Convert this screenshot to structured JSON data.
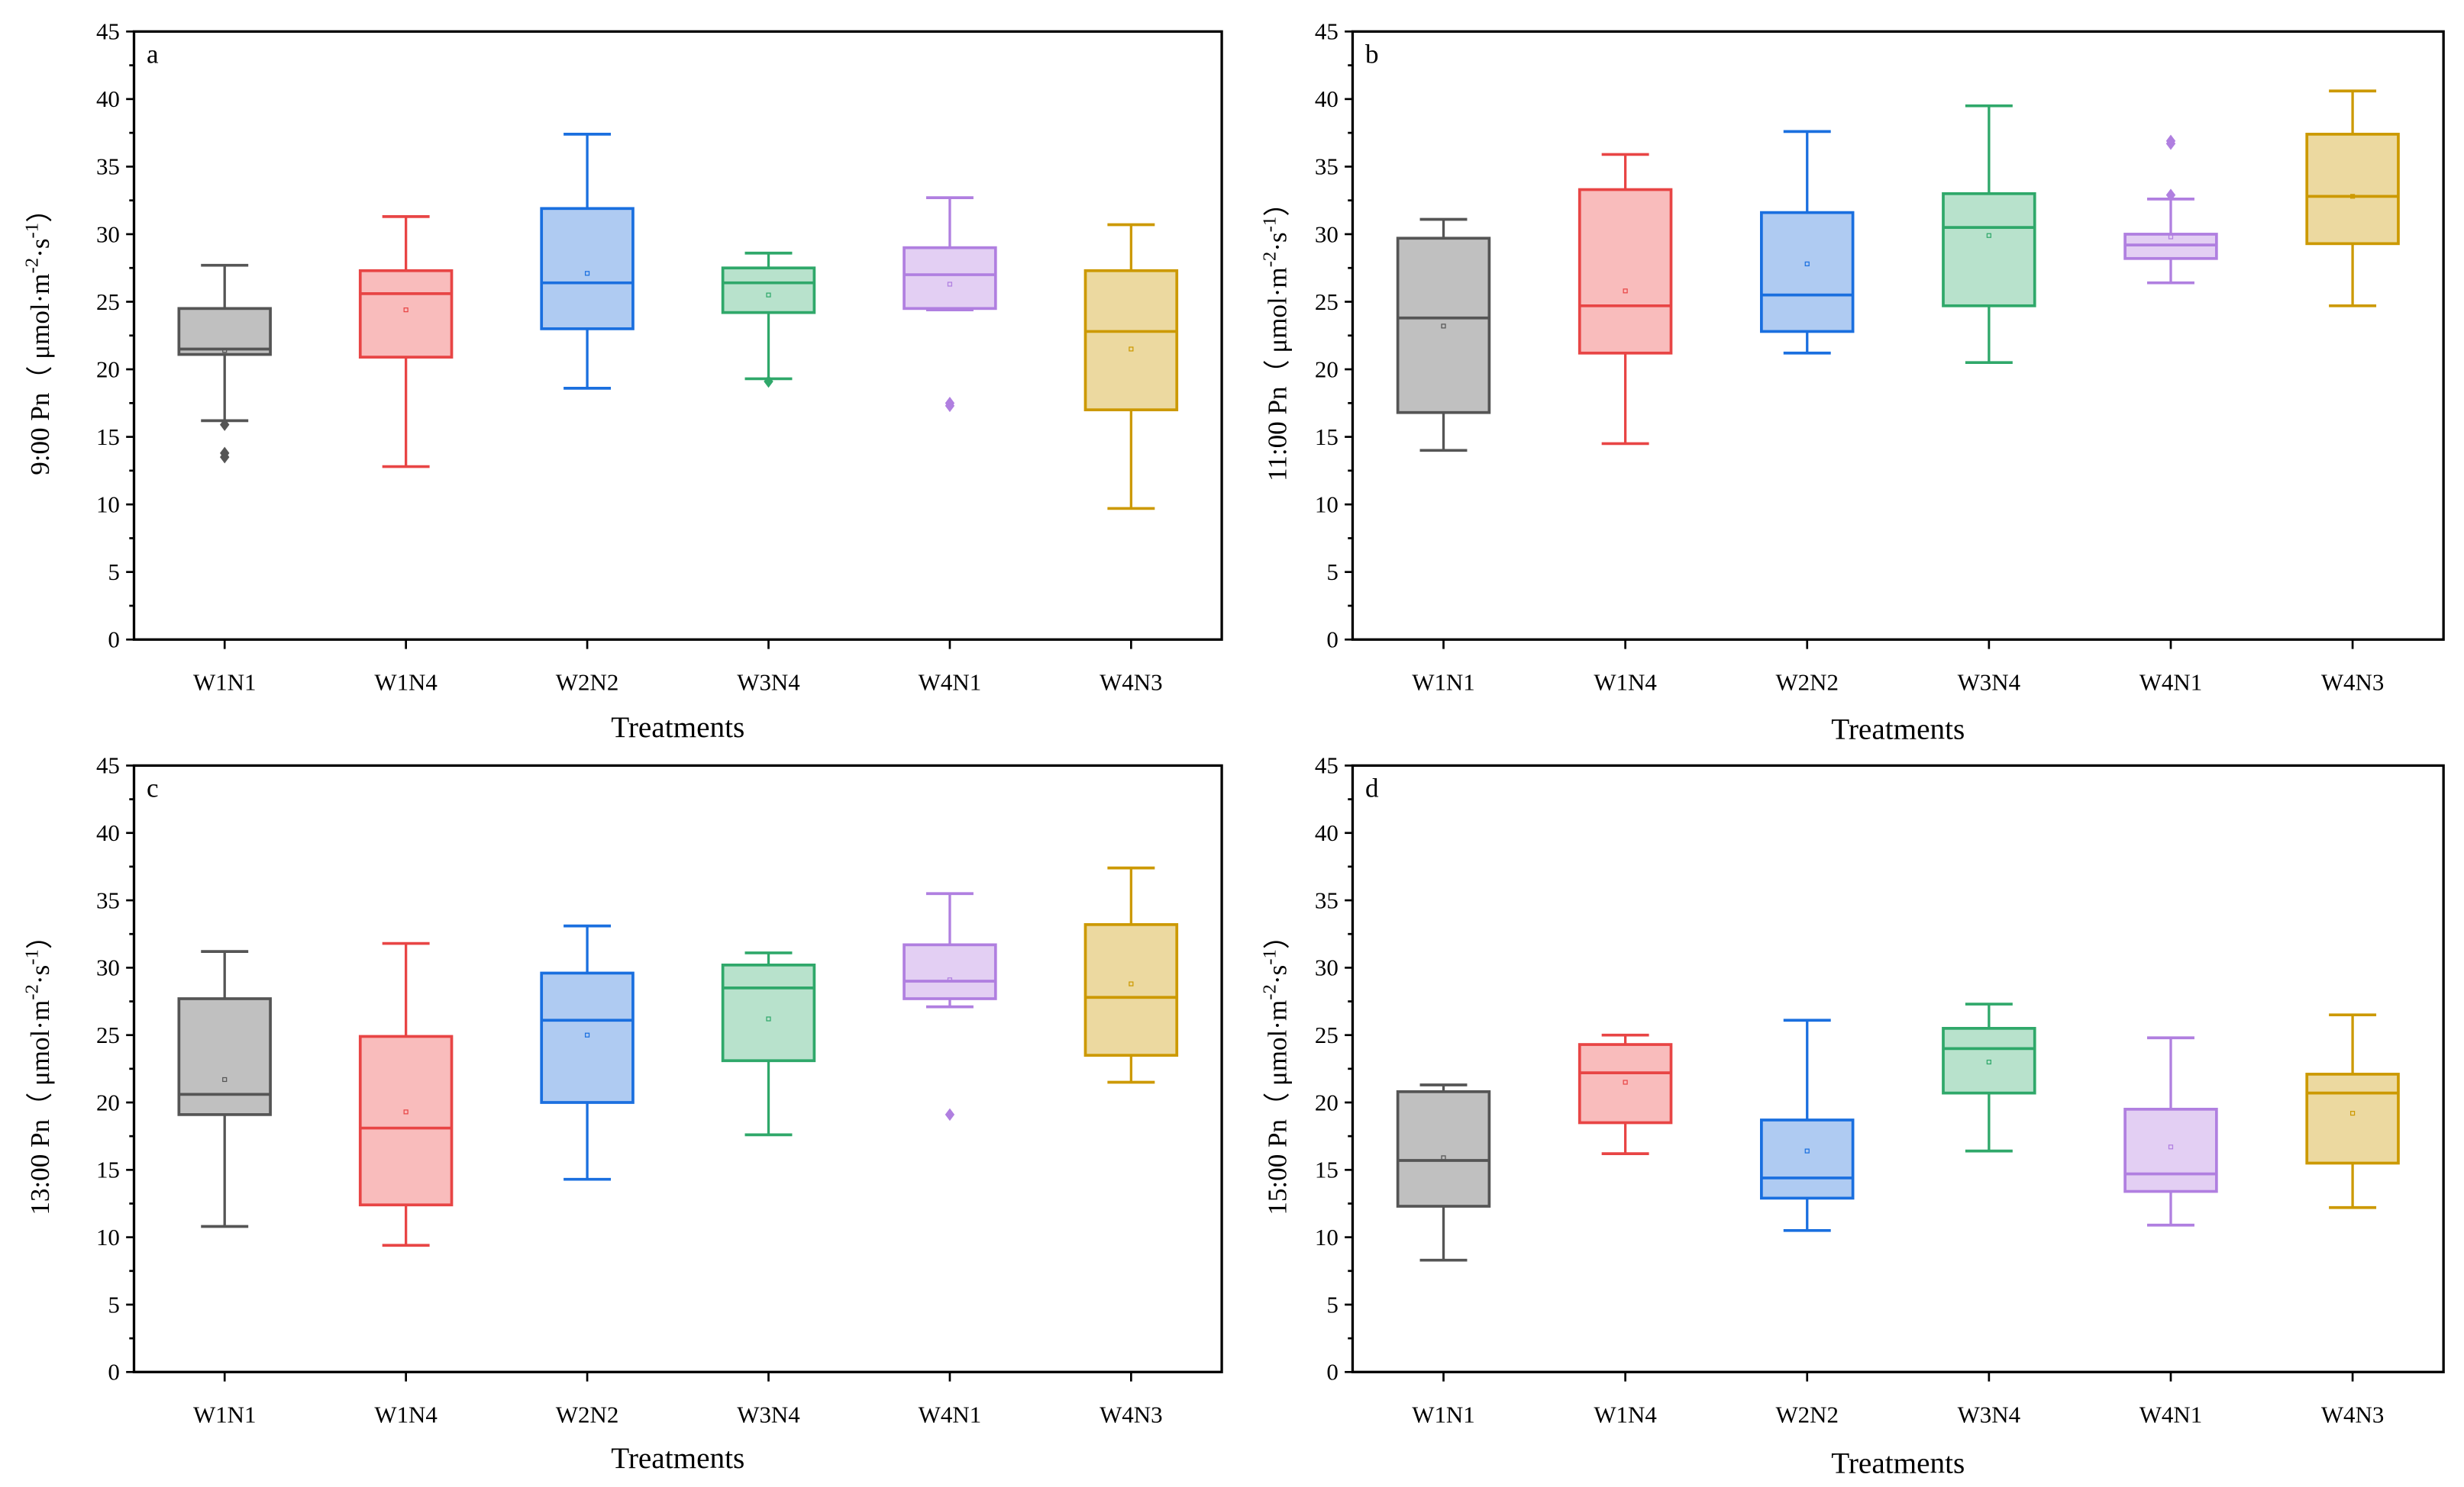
{
  "chart_data": [
    {
      "type": "box",
      "panel_label": "a",
      "ylabel_parts": [
        "9:00 Pn（ μmol·m",
        "-2",
        "·s",
        "-1",
        "）"
      ],
      "xlabel": "Treatments",
      "ylim": [
        0,
        45
      ],
      "yticks": [
        0,
        5,
        10,
        15,
        20,
        25,
        30,
        35,
        40,
        45
      ],
      "categories": [
        "W1N1",
        "W1N4",
        "W2N2",
        "W3N4",
        "W4N1",
        "W4N3"
      ],
      "series": [
        {
          "min": 16.2,
          "q1": 21.1,
          "median": 21.5,
          "q3": 24.5,
          "max": 27.7,
          "mean": 21.4,
          "outliers": [
            15.9,
            13.8,
            13.5
          ]
        },
        {
          "min": 12.8,
          "q1": 20.9,
          "median": 25.6,
          "q3": 27.3,
          "max": 31.3,
          "mean": 24.4,
          "outliers": []
        },
        {
          "min": 18.6,
          "q1": 23.0,
          "median": 26.4,
          "q3": 31.9,
          "max": 37.4,
          "mean": 27.1,
          "outliers": []
        },
        {
          "min": 19.3,
          "q1": 24.2,
          "median": 26.4,
          "q3": 27.5,
          "max": 28.6,
          "mean": 25.5,
          "outliers": [
            19.1
          ]
        },
        {
          "min": 24.4,
          "q1": 24.5,
          "median": 27.0,
          "q3": 29.0,
          "max": 32.7,
          "mean": 26.3,
          "outliers": [
            17.5,
            17.3
          ]
        },
        {
          "min": 9.7,
          "q1": 17.0,
          "median": 22.8,
          "q3": 27.3,
          "max": 30.7,
          "mean": 21.5,
          "outliers": []
        }
      ]
    },
    {
      "type": "box",
      "panel_label": "b",
      "ylabel_parts": [
        "11:00 Pn（ μmol·m",
        "-2",
        "·s",
        "-1",
        "）"
      ],
      "xlabel": "Treatments",
      "ylim": [
        0,
        45
      ],
      "yticks": [
        0,
        5,
        10,
        15,
        20,
        25,
        30,
        35,
        40,
        45
      ],
      "categories": [
        "W1N1",
        "W1N4",
        "W2N2",
        "W3N4",
        "W4N1",
        "W4N3"
      ],
      "series": [
        {
          "min": 14.0,
          "q1": 16.8,
          "median": 23.8,
          "q3": 29.7,
          "max": 31.1,
          "mean": 23.2,
          "outliers": []
        },
        {
          "min": 14.5,
          "q1": 21.2,
          "median": 24.7,
          "q3": 33.3,
          "max": 35.9,
          "mean": 25.8,
          "outliers": []
        },
        {
          "min": 21.2,
          "q1": 22.8,
          "median": 25.5,
          "q3": 31.6,
          "max": 37.6,
          "mean": 27.8,
          "outliers": []
        },
        {
          "min": 20.5,
          "q1": 24.7,
          "median": 30.5,
          "q3": 33.0,
          "max": 39.5,
          "mean": 29.9,
          "outliers": []
        },
        {
          "min": 26.4,
          "q1": 28.2,
          "median": 29.2,
          "q3": 30.0,
          "max": 32.6,
          "mean": 29.8,
          "outliers": [
            36.9,
            36.7,
            32.9
          ]
        },
        {
          "min": 24.7,
          "q1": 29.3,
          "median": 32.8,
          "q3": 37.4,
          "max": 40.6,
          "mean": 32.8,
          "outliers": []
        }
      ]
    },
    {
      "type": "box",
      "panel_label": "c",
      "ylabel_parts": [
        "13:00 Pn（ μmol·m",
        "-2",
        "·s",
        "-1",
        "）"
      ],
      "xlabel": "Treatments",
      "ylim": [
        0,
        45
      ],
      "yticks": [
        0,
        5,
        10,
        15,
        20,
        25,
        30,
        35,
        40,
        45
      ],
      "categories": [
        "W1N1",
        "W1N4",
        "W2N2",
        "W3N4",
        "W4N1",
        "W4N3"
      ],
      "series": [
        {
          "min": 10.8,
          "q1": 19.1,
          "median": 20.6,
          "q3": 27.7,
          "max": 31.2,
          "mean": 21.7,
          "outliers": []
        },
        {
          "min": 9.4,
          "q1": 12.4,
          "median": 18.1,
          "q3": 24.9,
          "max": 31.8,
          "mean": 19.3,
          "outliers": []
        },
        {
          "min": 14.3,
          "q1": 20.0,
          "median": 26.1,
          "q3": 29.6,
          "max": 33.1,
          "mean": 25.0,
          "outliers": []
        },
        {
          "min": 17.6,
          "q1": 23.1,
          "median": 28.5,
          "q3": 30.2,
          "max": 31.1,
          "mean": 26.2,
          "outliers": []
        },
        {
          "min": 27.1,
          "q1": 27.7,
          "median": 29.0,
          "q3": 31.7,
          "max": 35.5,
          "mean": 29.1,
          "outliers": [
            19.1
          ]
        },
        {
          "min": 21.5,
          "q1": 23.5,
          "median": 27.8,
          "q3": 33.2,
          "max": 37.4,
          "mean": 28.8,
          "outliers": []
        }
      ]
    },
    {
      "type": "box",
      "panel_label": "d",
      "ylabel_parts": [
        "15:00 Pn（ μmol·m",
        "-2",
        "·s",
        "-1",
        "）"
      ],
      "xlabel": "Treatments",
      "ylim": [
        0,
        45
      ],
      "yticks": [
        0,
        5,
        10,
        15,
        20,
        25,
        30,
        35,
        40,
        45
      ],
      "categories": [
        "W1N1",
        "W1N4",
        "W2N2",
        "W3N4",
        "W4N1",
        "W4N3"
      ],
      "series": [
        {
          "min": 8.3,
          "q1": 12.3,
          "median": 15.7,
          "q3": 20.8,
          "max": 21.3,
          "mean": 15.9,
          "outliers": []
        },
        {
          "min": 16.2,
          "q1": 18.5,
          "median": 22.2,
          "q3": 24.3,
          "max": 25.0,
          "mean": 21.5,
          "outliers": []
        },
        {
          "min": 10.5,
          "q1": 12.9,
          "median": 14.4,
          "q3": 18.7,
          "max": 26.1,
          "mean": 16.4,
          "outliers": []
        },
        {
          "min": 16.4,
          "q1": 20.7,
          "median": 24.0,
          "q3": 25.5,
          "max": 27.3,
          "mean": 23.0,
          "outliers": []
        },
        {
          "min": 10.9,
          "q1": 13.4,
          "median": 14.7,
          "q3": 19.5,
          "max": 24.8,
          "mean": 16.7,
          "outliers": []
        },
        {
          "min": 12.2,
          "q1": 15.5,
          "median": 20.7,
          "q3": 22.1,
          "max": 26.5,
          "mean": 19.2,
          "outliers": []
        }
      ]
    }
  ],
  "colors": {
    "stroke": [
      "#555555",
      "#e84545",
      "#1a6fdf",
      "#2fa86a",
      "#b07fe0",
      "#cc9900"
    ],
    "fill": [
      "#c0c0c0",
      "#f9bcbc",
      "#afcbf2",
      "#b8e2cc",
      "#e3cff3",
      "#ecd9a0"
    ]
  }
}
